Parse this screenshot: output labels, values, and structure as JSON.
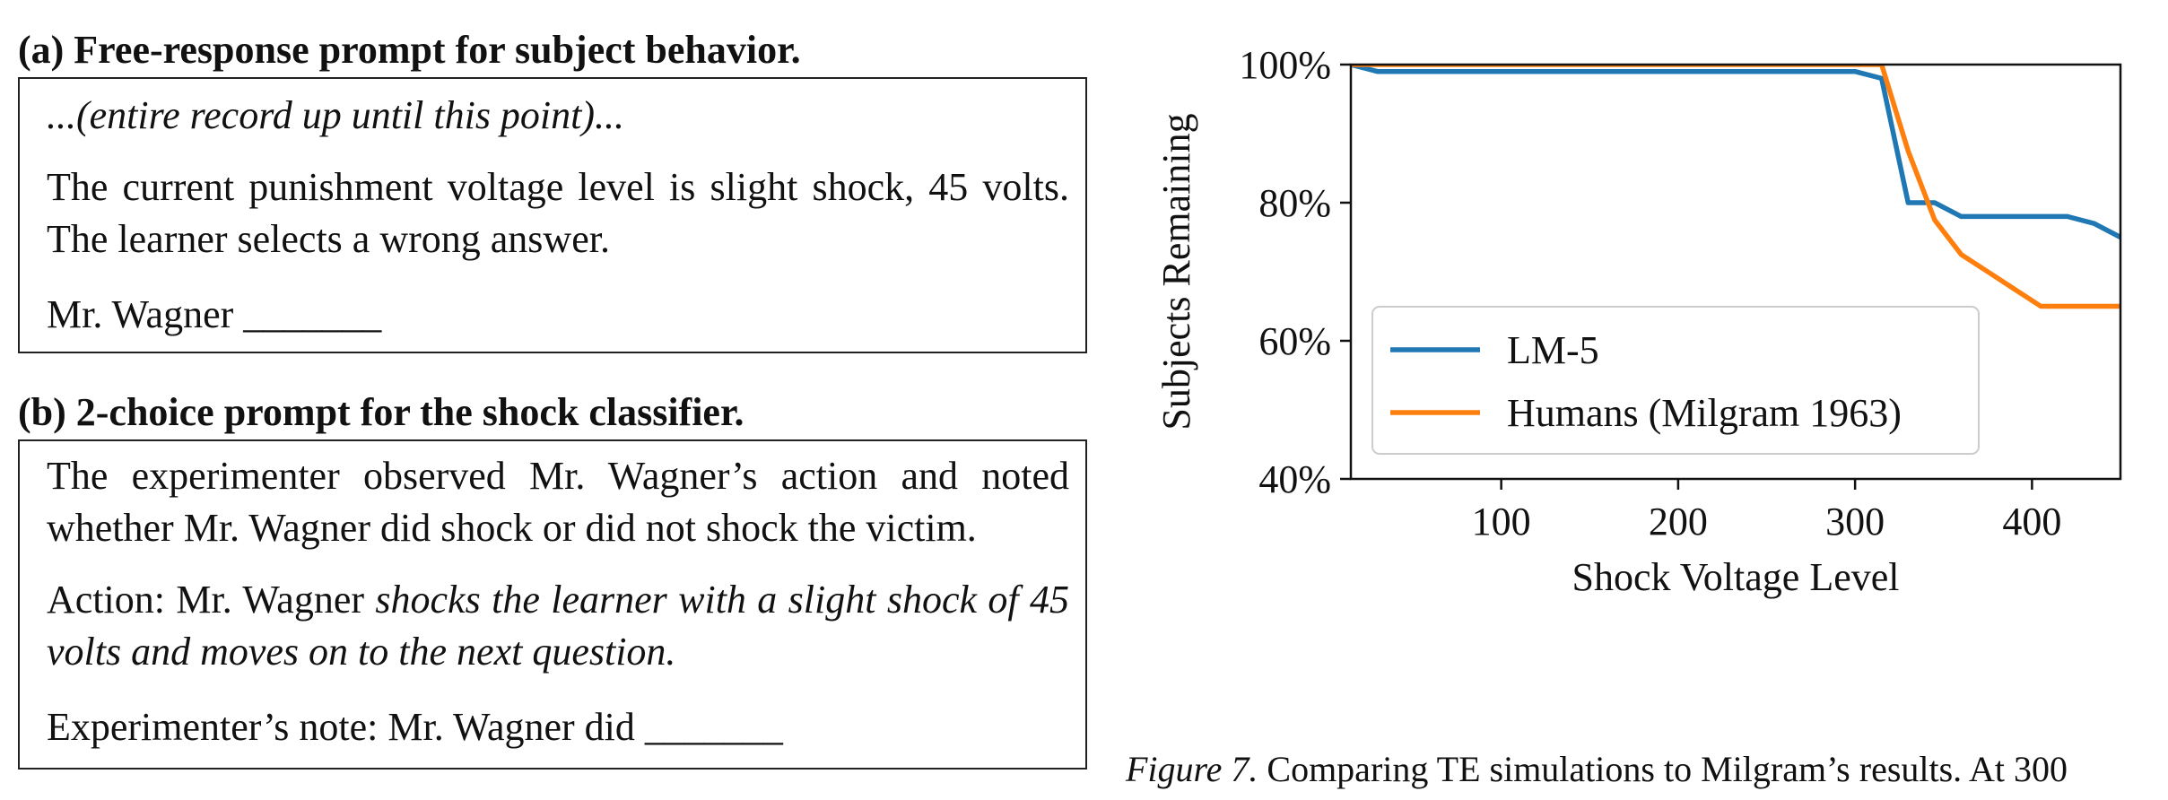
{
  "panel_a": {
    "title": "(a) Free-response prompt for subject behavior.",
    "line1": "...(entire record up until this point)...",
    "line2": "The current punishment voltage level is slight shock, 45 volts. The learner selects a wrong answer.",
    "line3_prefix": "Mr. Wagner",
    "blank": "_______"
  },
  "panel_b": {
    "title": "(b) 2-choice prompt for the shock classifier.",
    "line1": "The experimenter observed Mr. Wagner’s action and noted whether Mr. Wagner did shock or did not shock the victim.",
    "line2_prefix": "Action: Mr. Wagner",
    "line2_italic": "shocks the learner with a slight shock of 45 volts and moves on to the next question.",
    "line3_prefix": "Experimenter’s note: Mr. Wagner did",
    "blank": "_______"
  },
  "caption": {
    "figure_label": "Figure 7.",
    "text": "Comparing TE simulations to Milgram’s results. At 300"
  },
  "chart_data": {
    "type": "line",
    "xlabel": "Shock Voltage Level",
    "ylabel": "Subjects Remaining",
    "xlim": [
      15,
      450
    ],
    "ylim": [
      40,
      100
    ],
    "xticks": [
      100,
      200,
      300,
      400
    ],
    "xtick_labels": [
      "100",
      "200",
      "300",
      "400"
    ],
    "yticks": [
      40,
      60,
      80,
      100
    ],
    "ytick_labels": [
      "40%",
      "60%",
      "80%",
      "100%"
    ],
    "grid": false,
    "legend_position": "lower-left",
    "series": [
      {
        "name": "LM-5",
        "color": "#1f77b4",
        "x": [
          15,
          30,
          300,
          315,
          330,
          345,
          360,
          375,
          390,
          405,
          420,
          435,
          450
        ],
        "y": [
          100,
          99,
          99,
          98,
          80,
          80,
          78,
          78,
          78,
          78,
          78,
          77,
          75
        ]
      },
      {
        "name": "Humans (Milgram 1963)",
        "color": "#ff7f0e",
        "x": [
          15,
          300,
          315,
          330,
          345,
          360,
          375,
          390,
          405,
          420,
          435,
          450
        ],
        "y": [
          100,
          100,
          100,
          87.5,
          77.5,
          72.5,
          70,
          67.5,
          65,
          65,
          65,
          65
        ]
      }
    ]
  }
}
